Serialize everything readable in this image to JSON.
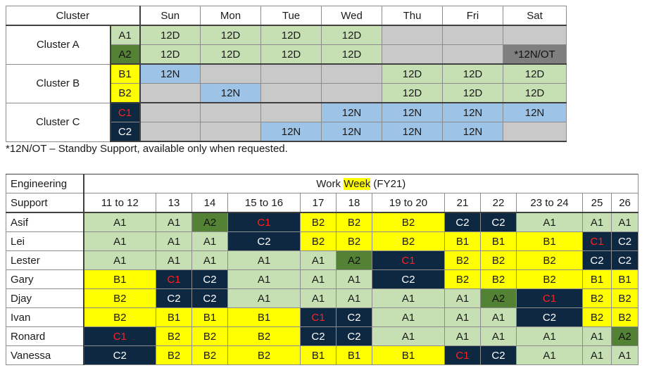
{
  "schedule": {
    "header": {
      "cluster": "Cluster",
      "days": [
        "Sun",
        "Mon",
        "Tue",
        "Wed",
        "Thu",
        "Fri",
        "Sat"
      ]
    },
    "clusters": [
      {
        "name": "Cluster A",
        "rows": [
          {
            "code": "A1",
            "cells": [
              "12D",
              "12D",
              "12D",
              "12D",
              "",
              "",
              ""
            ]
          },
          {
            "code": "A2",
            "cells": [
              "12D",
              "12D",
              "12D",
              "12D",
              "",
              "",
              "*12N/OT"
            ]
          }
        ]
      },
      {
        "name": "Cluster B",
        "rows": [
          {
            "code": "B1",
            "cells": [
              "12N",
              "",
              "",
              "",
              "12D",
              "12D",
              "12D"
            ]
          },
          {
            "code": "B2",
            "cells": [
              "",
              "12N",
              "",
              "",
              "12D",
              "12D",
              "12D"
            ]
          }
        ]
      },
      {
        "name": "Cluster C",
        "rows": [
          {
            "code": "C1",
            "cells": [
              "",
              "",
              "",
              "12N",
              "12N",
              "12N",
              "12N"
            ]
          },
          {
            "code": "C2",
            "cells": [
              "",
              "",
              "12N",
              "12N",
              "12N",
              "12N",
              ""
            ]
          }
        ]
      }
    ],
    "note": "*12N/OT – Standby Support, available only when requested."
  },
  "rota": {
    "eng_label_1": "Engineering",
    "eng_label_2": "Support",
    "title_pre": "Work ",
    "title_hl": "Week",
    "title_post": " (FY21)",
    "weeks": [
      "11 to 12",
      "13",
      "14",
      "15 to 16",
      "17",
      "18",
      "19 to 20",
      "21",
      "22",
      "23 to 24",
      "25",
      "26"
    ],
    "people": [
      {
        "name": "Asif",
        "cells": [
          "A1",
          "A1",
          "A2",
          "C1",
          "B2",
          "B2",
          "B2",
          "C2",
          "C2",
          "A1",
          "A1",
          "A1"
        ]
      },
      {
        "name": "Lei",
        "cells": [
          "A1",
          "A1",
          "A1",
          "C2",
          "B2",
          "B2",
          "B2",
          "B1",
          "B1",
          "B1",
          "C1",
          "C2"
        ]
      },
      {
        "name": "Lester",
        "cells": [
          "A1",
          "A1",
          "A1",
          "A1",
          "A1",
          "A2",
          "C1",
          "B2",
          "B2",
          "B2",
          "C2",
          "C2"
        ]
      },
      {
        "name": "Gary",
        "cells": [
          "B1",
          "C1",
          "C2",
          "A1",
          "A1",
          "A1",
          "C2",
          "B2",
          "B2",
          "B2",
          "B1",
          "B1"
        ]
      },
      {
        "name": "Djay",
        "cells": [
          "B2",
          "C2",
          "C2",
          "A1",
          "A1",
          "A1",
          "A1",
          "A1",
          "A2",
          "C1",
          "B2",
          "B2"
        ]
      },
      {
        "name": "Ivan",
        "cells": [
          "B2",
          "B1",
          "B1",
          "B1",
          "C1",
          "C2",
          "A1",
          "A1",
          "A1",
          "C2",
          "B2",
          "B2"
        ]
      },
      {
        "name": "Ronard",
        "cells": [
          "C1",
          "B2",
          "B2",
          "B2",
          "C2",
          "C2",
          "A1",
          "A1",
          "A1",
          "A1",
          "A1",
          "A2"
        ]
      },
      {
        "name": "Vanessa",
        "cells": [
          "C2",
          "B2",
          "B2",
          "B2",
          "B1",
          "B1",
          "B1",
          "C1",
          "C2",
          "A1",
          "A1",
          "A1"
        ]
      }
    ]
  },
  "colors": {
    "green": "#c6e0b4",
    "dark_green": "#548235",
    "yellow": "#ffff00",
    "light_blue": "#9dc3e6",
    "gray": "#c9c9c9",
    "dark_gray": "#7f7f7f",
    "navy": "#0e2841",
    "red_text": "#ff2020"
  }
}
